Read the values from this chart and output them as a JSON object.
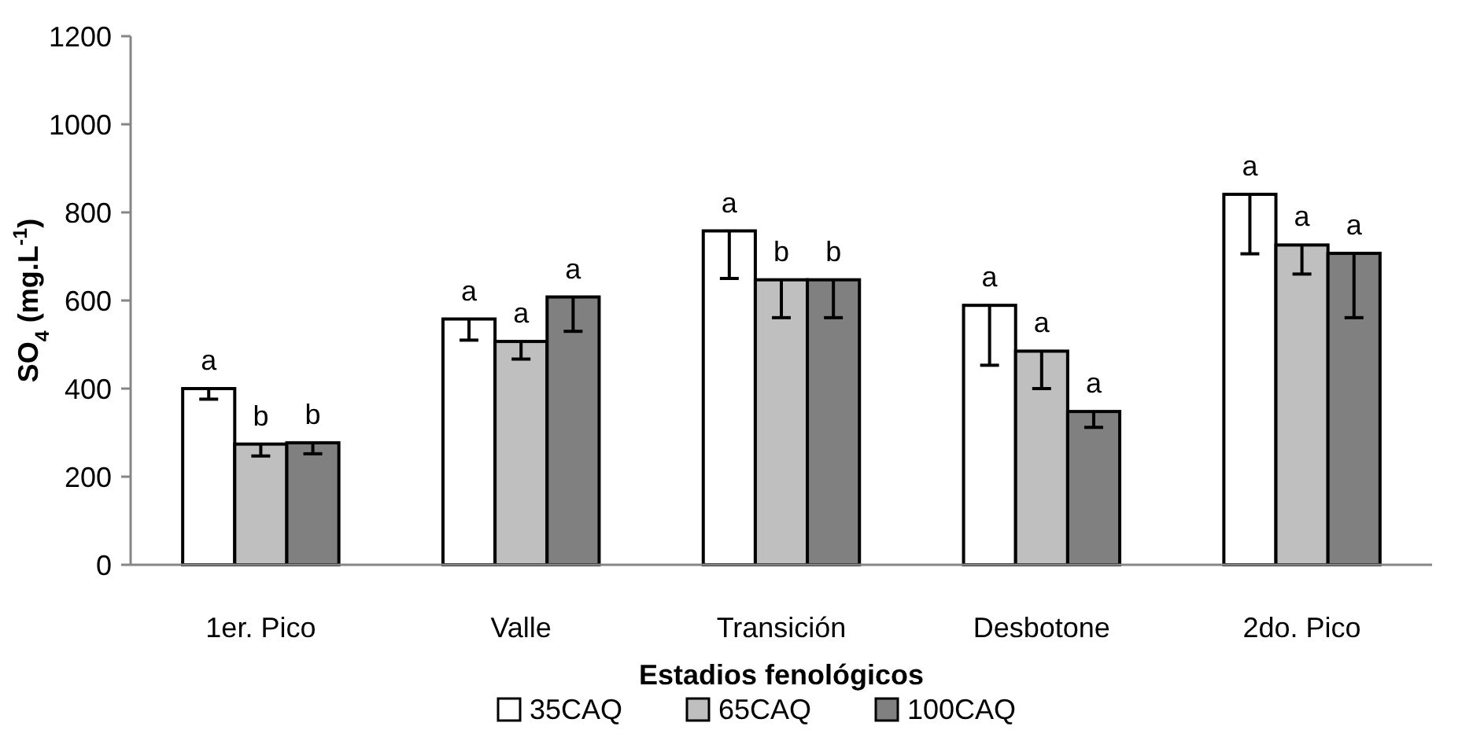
{
  "chart_data": {
    "type": "bar",
    "xlabel": "Estadios fenológicos",
    "ylabel": "SO$_{4}$ (mg.L$^{-1}$)",
    "categories": [
      "1er. Pico",
      "Valle",
      "Transición",
      "Desbotone",
      "2do. Pico"
    ],
    "ylim": [
      0,
      1200
    ],
    "yticks": [
      0,
      200,
      400,
      600,
      800,
      1000,
      1200
    ],
    "grid": false,
    "legend": "bottom",
    "series": [
      {
        "name": "35CAQ",
        "color": "#ffffff",
        "values": [
          400,
          558,
          758,
          589,
          841
        ],
        "errors": [
          [
            376,
            400
          ],
          [
            510,
            558
          ],
          [
            650,
            758
          ],
          [
            453,
            589
          ],
          [
            706,
            841
          ]
        ],
        "value_labels": [
          "a",
          "a",
          "a",
          "a",
          "a"
        ]
      },
      {
        "name": "65CAQ",
        "color": "#bfbfbf",
        "values": [
          274,
          507,
          647,
          485,
          726
        ],
        "errors": [
          [
            247,
            274
          ],
          [
            467,
            507
          ],
          [
            561,
            647
          ],
          [
            400,
            485
          ],
          [
            660,
            726
          ]
        ],
        "value_labels": [
          "b",
          "a",
          "b",
          "a",
          "a"
        ]
      },
      {
        "name": "100CAQ",
        "color": "#808080",
        "values": [
          277,
          608,
          647,
          348,
          707
        ],
        "errors": [
          [
            252,
            277
          ],
          [
            530,
            608
          ],
          [
            561,
            647
          ],
          [
            312,
            348
          ],
          [
            561,
            707
          ]
        ],
        "value_labels": [
          "b",
          "a",
          "b",
          "a",
          "a"
        ]
      }
    ]
  }
}
